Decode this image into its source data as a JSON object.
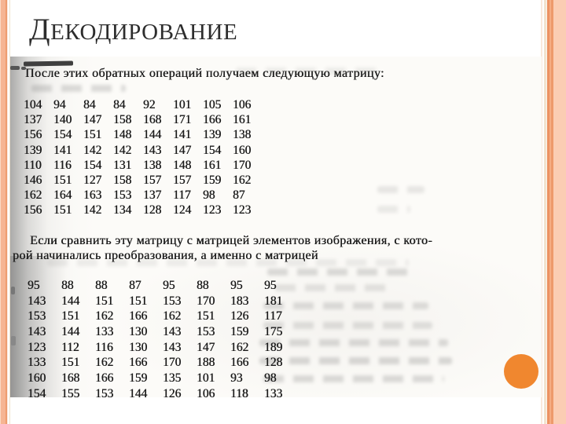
{
  "slide": {
    "title": "Декодирование"
  },
  "scan": {
    "paragraph1": "После этих обратных операций получаем следующую матрицу:",
    "matrix1": {
      "rows": [
        [
          104,
          94,
          84,
          84,
          92,
          101,
          105,
          106
        ],
        [
          137,
          140,
          147,
          158,
          168,
          171,
          166,
          161
        ],
        [
          156,
          154,
          151,
          148,
          144,
          141,
          139,
          138
        ],
        [
          139,
          141,
          142,
          142,
          143,
          147,
          154,
          160
        ],
        [
          110,
          116,
          154,
          131,
          138,
          148,
          161,
          170
        ],
        [
          146,
          151,
          127,
          158,
          157,
          157,
          159,
          162
        ],
        [
          162,
          164,
          163,
          153,
          137,
          117,
          98,
          87
        ],
        [
          156,
          151,
          142,
          134,
          128,
          124,
          123,
          123
        ]
      ]
    },
    "paragraph2": {
      "line1": "Если сравнить эту матрицу с матрицей элементов изображения, с кото-",
      "line2": "рой начинались преобразования, а именно с матрицей"
    },
    "matrix2": {
      "rows": [
        [
          95,
          88,
          88,
          87,
          95,
          88,
          95,
          95
        ],
        [
          143,
          144,
          151,
          151,
          153,
          170,
          183,
          181
        ],
        [
          153,
          151,
          162,
          166,
          162,
          151,
          126,
          117
        ],
        [
          143,
          144,
          133,
          130,
          143,
          153,
          159,
          175
        ],
        [
          123,
          112,
          116,
          130,
          143,
          147,
          162,
          189
        ],
        [
          133,
          151,
          162,
          166,
          170,
          188,
          166,
          128
        ],
        [
          160,
          168,
          166,
          159,
          135,
          101,
          93,
          98
        ],
        [
          154,
          155,
          153,
          144,
          126,
          106,
          118,
          133
        ]
      ]
    }
  },
  "theme": {
    "accent_circle_color": "#f0872f",
    "left_bar_color": "#f6b593",
    "stripe_orange": "#ec9160",
    "stripe_peach": "#fbcdb3",
    "stripe_cream": "#f2e3cf",
    "title_color": "#2d2d2d"
  }
}
